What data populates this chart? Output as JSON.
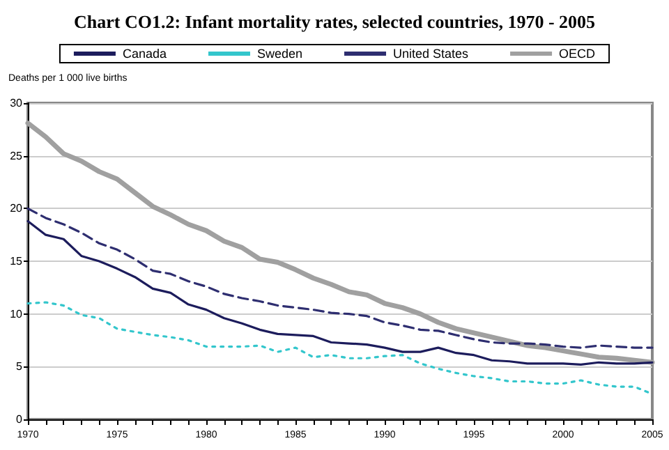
{
  "chart_data": {
    "type": "line",
    "title": "Chart CO1.2: Infant mortality rates, selected countries, 1970 - 2005",
    "ylabel": "Deaths per 1 000 live births",
    "x": [
      1970,
      1971,
      1972,
      1973,
      1974,
      1975,
      1976,
      1977,
      1978,
      1979,
      1980,
      1981,
      1982,
      1983,
      1984,
      1985,
      1986,
      1987,
      1988,
      1989,
      1990,
      1991,
      1992,
      1993,
      1994,
      1995,
      1996,
      1997,
      1998,
      1999,
      2000,
      2001,
      2002,
      2003,
      2004,
      2005
    ],
    "series": [
      {
        "name": "Canada",
        "color": "#1c1c5c",
        "line_style": "solid",
        "values": [
          18.8,
          17.5,
          17.1,
          15.5,
          15.0,
          14.3,
          13.5,
          12.4,
          12.0,
          10.9,
          10.4,
          9.6,
          9.1,
          8.5,
          8.1,
          8.0,
          7.9,
          7.3,
          7.2,
          7.1,
          6.8,
          6.4,
          6.4,
          6.8,
          6.3,
          6.1,
          5.6,
          5.5,
          5.3,
          5.3,
          5.3,
          5.2,
          5.4,
          5.3,
          5.3,
          5.4
        ]
      },
      {
        "name": "Sweden",
        "color": "#33c6cc",
        "line_style": "dotted",
        "values": [
          11.0,
          11.1,
          10.8,
          9.9,
          9.6,
          8.6,
          8.3,
          8.0,
          7.8,
          7.5,
          6.9,
          6.9,
          6.9,
          7.0,
          6.4,
          6.8,
          5.9,
          6.1,
          5.8,
          5.8,
          6.0,
          6.1,
          5.3,
          4.8,
          4.4,
          4.1,
          3.9,
          3.6,
          3.6,
          3.4,
          3.4,
          3.7,
          3.3,
          3.1,
          3.1,
          2.4
        ]
      },
      {
        "name": "United States",
        "color": "#2e2e70",
        "line_style": "dashed",
        "values": [
          20.0,
          19.1,
          18.5,
          17.7,
          16.7,
          16.1,
          15.2,
          14.1,
          13.8,
          13.1,
          12.6,
          11.9,
          11.5,
          11.2,
          10.8,
          10.6,
          10.4,
          10.1,
          10.0,
          9.8,
          9.2,
          8.9,
          8.5,
          8.4,
          8.0,
          7.6,
          7.3,
          7.2,
          7.2,
          7.1,
          6.9,
          6.8,
          7.0,
          6.9,
          6.8,
          6.8
        ]
      },
      {
        "name": "OECD",
        "color": "#a0a0a0",
        "line_style": "solid",
        "values": [
          28.1,
          26.8,
          25.2,
          24.5,
          23.5,
          22.8,
          21.5,
          20.2,
          19.4,
          18.5,
          17.9,
          16.9,
          16.3,
          15.2,
          14.9,
          14.2,
          13.4,
          12.8,
          12.1,
          11.8,
          11.0,
          10.6,
          10.0,
          9.2,
          8.6,
          8.2,
          7.8,
          7.4,
          7.0,
          6.8,
          6.5,
          6.2,
          5.9,
          5.8,
          5.6,
          5.4
        ]
      }
    ],
    "xlim": [
      1970,
      2005
    ],
    "xticks": [
      1970,
      {
        "value": 1971,
        "label": null
      },
      {
        "value": 1972,
        "label": null
      },
      {
        "value": 1973,
        "label": null
      },
      {
        "value": 1974,
        "label": null
      },
      1975,
      {
        "value": 1976,
        "label": null
      },
      {
        "value": 1977,
        "label": null
      },
      {
        "value": 1978,
        "label": null
      },
      {
        "value": 1979,
        "label": null
      },
      1980,
      {
        "value": 1981,
        "label": null
      },
      {
        "value": 1982,
        "label": null
      },
      {
        "value": 1983,
        "label": null
      },
      {
        "value": 1984,
        "label": null
      },
      1985,
      {
        "value": 1986,
        "label": null
      },
      {
        "value": 1987,
        "label": null
      },
      {
        "value": 1988,
        "label": null
      },
      {
        "value": 1989,
        "label": null
      },
      1990,
      {
        "value": 1991,
        "label": null
      },
      {
        "value": 1992,
        "label": null
      },
      {
        "value": 1993,
        "label": null
      },
      {
        "value": 1994,
        "label": null
      },
      1995,
      {
        "value": 1996,
        "label": null
      },
      {
        "value": 1997,
        "label": null
      },
      {
        "value": 1998,
        "label": null
      },
      {
        "value": 1999,
        "label": null
      },
      2000,
      {
        "value": 2001,
        "label": null
      },
      {
        "value": 2002,
        "label": null
      },
      {
        "value": 2003,
        "label": null
      },
      {
        "value": 2004,
        "label": null
      },
      2005
    ],
    "ylim": [
      0,
      30
    ],
    "yticks": [
      0,
      5,
      10,
      15,
      20,
      25,
      30
    ],
    "grid": "y",
    "legend": "top",
    "marker": "none"
  }
}
